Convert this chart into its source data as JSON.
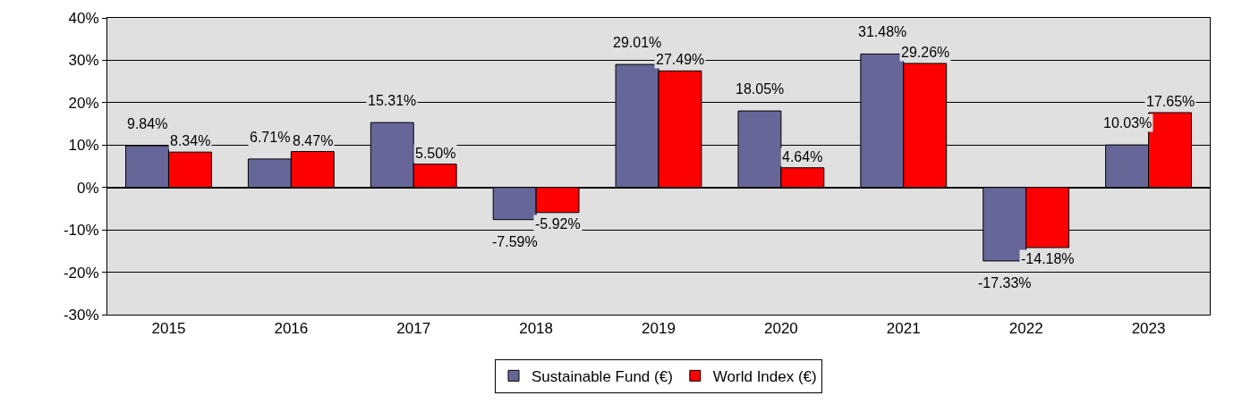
{
  "chart_data": {
    "type": "bar",
    "categories": [
      "2015",
      "2016",
      "2017",
      "2018",
      "2019",
      "2020",
      "2021",
      "2022",
      "2023"
    ],
    "series": [
      {
        "name": "Sustainable Fund (€)",
        "color": "#666699",
        "values": [
          9.84,
          6.71,
          15.31,
          -7.59,
          29.01,
          18.05,
          31.48,
          -17.33,
          10.03
        ],
        "value_labels": [
          "9.84%",
          "6.71%",
          "15.31%",
          "-7.59%",
          "29.01%",
          "18.05%",
          "31.48%",
          "-17.33%",
          "10.03%"
        ]
      },
      {
        "name": "World Index (€)",
        "color": "#ff0000",
        "values": [
          8.34,
          8.47,
          5.5,
          -5.92,
          27.49,
          4.64,
          29.26,
          -14.18,
          17.65
        ],
        "value_labels": [
          "8.34%",
          "8.47%",
          "5.50%",
          "-5.92%",
          "27.49%",
          "4.64%",
          "29.26%",
          "-14.18%",
          "17.65%"
        ]
      }
    ],
    "ylim": [
      -30,
      40
    ],
    "yticks": [
      {
        "value": -30,
        "label": "-30%"
      },
      {
        "value": -20,
        "label": "-20%"
      },
      {
        "value": -10,
        "label": "-10%"
      },
      {
        "value": 0,
        "label": "0%"
      },
      {
        "value": 10,
        "label": "10%"
      },
      {
        "value": 20,
        "label": "20%"
      },
      {
        "value": 30,
        "label": "30%"
      },
      {
        "value": 40,
        "label": "40%"
      }
    ],
    "grid": "y",
    "legend": "bottom"
  }
}
